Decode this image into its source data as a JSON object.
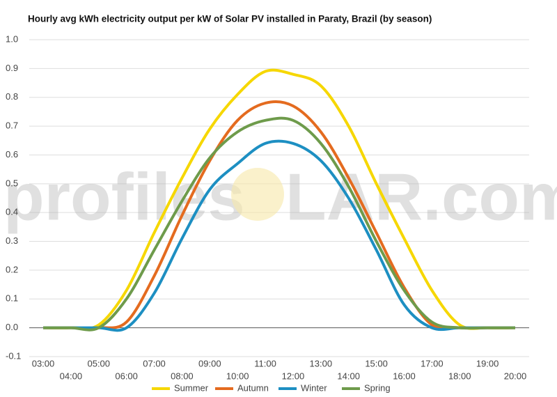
{
  "chart_data": {
    "type": "line",
    "title": "Hourly avg kWh electricity output per kW of Solar PV installed in Paraty, Brazil (by season)",
    "watermark": [
      "profiles",
      "LAR.com"
    ],
    "categories": [
      "03:00",
      "04:00",
      "05:00",
      "06:00",
      "07:00",
      "08:00",
      "09:00",
      "10:00",
      "11:00",
      "12:00",
      "13:00",
      "14:00",
      "15:00",
      "16:00",
      "17:00",
      "18:00",
      "19:00",
      "20:00"
    ],
    "series": [
      {
        "name": "Summer",
        "color": "#f6d700",
        "values": [
          0,
          0,
          0.01,
          0.13,
          0.33,
          0.52,
          0.69,
          0.81,
          0.89,
          0.88,
          0.84,
          0.7,
          0.5,
          0.31,
          0.13,
          0.01,
          0,
          0
        ]
      },
      {
        "name": "Autumn",
        "color": "#e46b1f",
        "values": [
          0,
          0,
          0,
          0.02,
          0.18,
          0.39,
          0.58,
          0.72,
          0.78,
          0.77,
          0.68,
          0.52,
          0.33,
          0.14,
          0.01,
          0,
          0,
          0
        ]
      },
      {
        "name": "Winter",
        "color": "#1d8fc2",
        "values": [
          0,
          0,
          0,
          0,
          0.12,
          0.31,
          0.48,
          0.57,
          0.64,
          0.64,
          0.58,
          0.45,
          0.27,
          0.08,
          0,
          0,
          0,
          0
        ]
      },
      {
        "name": "Spring",
        "color": "#6e9b4b",
        "values": [
          0,
          0,
          0,
          0.1,
          0.27,
          0.44,
          0.59,
          0.68,
          0.72,
          0.72,
          0.64,
          0.49,
          0.3,
          0.13,
          0.02,
          0,
          0,
          0
        ]
      }
    ],
    "ylim": [
      -0.1,
      1.0
    ],
    "yticks": [
      {
        "value": -0.1,
        "label": "-0.1"
      },
      {
        "value": 0,
        "label": "0.0"
      },
      0.1,
      0.2,
      0.3,
      0.4,
      0.5,
      0.6,
      0.7,
      0.8,
      0.9,
      {
        "value": 1,
        "label": "1.0"
      }
    ],
    "grid": true,
    "legend": "bottom"
  }
}
